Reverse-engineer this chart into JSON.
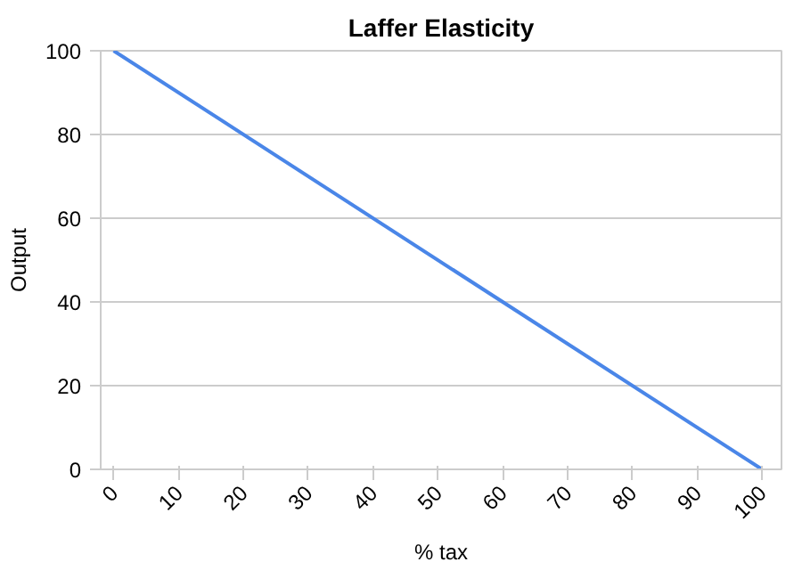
{
  "chart_data": {
    "type": "line",
    "title": "Laffer Elasticity",
    "xlabel": "% tax",
    "ylabel": "Output",
    "x": [
      0,
      100
    ],
    "series": [
      {
        "color": "#4a86e8",
        "values": [
          100,
          0
        ]
      }
    ],
    "xlim": [
      -2,
      103
    ],
    "ylim": [
      0,
      100
    ],
    "xticks": [
      0,
      10,
      20,
      30,
      40,
      50,
      60,
      70,
      80,
      90,
      100
    ],
    "yticks": [
      0,
      20,
      40,
      60,
      80,
      100
    ],
    "grid": "y",
    "marker": "none",
    "line_style": "solid"
  }
}
